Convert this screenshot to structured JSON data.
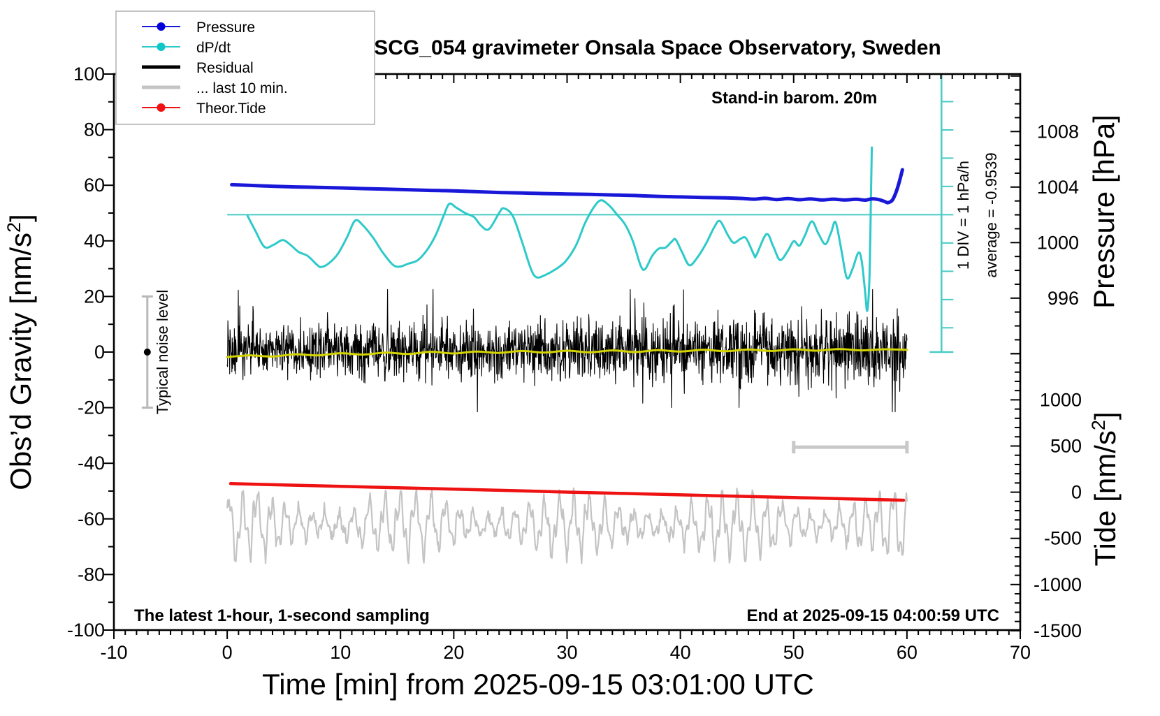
{
  "title": "SCG_054 gravimeter Onsala Space Observatory, Sweden",
  "colors": {
    "pressure": "#1a18d8",
    "pressure_dot": "#0202dc",
    "dpdt": "#2ec9c9",
    "dpdt_dot": "#10c6c6",
    "dpdt_guide": "#49cbc6",
    "residual": "#000000",
    "residual_smooth": "#d4d400",
    "last10": "#c4c4c4",
    "tide": "#ee1212",
    "tide_dot": "#ee1212",
    "noise_bar": "#b8b8b8",
    "scale_bar": "#c8c8c8",
    "frame": "#000000",
    "legend_border": "#b0b0b0"
  },
  "legend": {
    "items": [
      {
        "label": "Pressure",
        "color": "#1a18d8",
        "dot": "#0202dc",
        "style": "thin-dot"
      },
      {
        "label": "dP/dt",
        "color": "#2ec9c9",
        "dot": "#10c6c6",
        "style": "thin-dot"
      },
      {
        "label": "Residual",
        "color": "#000000",
        "dot": "",
        "style": "thick"
      },
      {
        "label": "... last 10 min.",
        "color": "#c4c4c4",
        "dot": "",
        "style": "thick"
      },
      {
        "label": "Theor.Tide",
        "color": "#ee1212",
        "dot": "#ee1212",
        "style": "thin-dot"
      }
    ]
  },
  "annotations": {
    "stand_in": "Stand-in barom. 20m",
    "div_scale": "1 DIV = 1 hPa/h",
    "average": "average = -0.9539",
    "noise_label": "Typical noise level",
    "sampling": "The latest 1-hour, 1-second sampling",
    "end_at": "End at 2025-09-15 04:00:59 UTC"
  },
  "axes": {
    "x": {
      "label": "Time [min] from 2025-09-15 03:01:00 UTC",
      "range": [
        -10,
        70
      ],
      "major_step": 10,
      "minor_step": 1,
      "tick_values": [
        -10,
        0,
        10,
        20,
        30,
        40,
        50,
        60,
        70
      ],
      "tick_labels": [
        "-10",
        "0",
        "10",
        "20",
        "30",
        "40",
        "50",
        "60",
        "70"
      ]
    },
    "gravity": {
      "label_main": "Obs’d Gravity [nm/s",
      "label_sup": "2",
      "label_close": "]",
      "range": [
        -100,
        100
      ],
      "major_step": 20,
      "minor_step": 10,
      "tick_values": [
        100,
        80,
        60,
        40,
        20,
        0,
        -20,
        -40,
        -60,
        -80,
        -100
      ],
      "tick_labels": [
        "100",
        "80",
        "60",
        "40",
        "20",
        "0",
        "-20",
        "-40",
        "-60",
        "-80",
        "-100"
      ]
    },
    "pressure": {
      "label": "Pressure [hPa]",
      "shown_range": [
        992,
        1012
      ],
      "major_step": 4,
      "minor_step": 1,
      "ref_value": 1000,
      "gravity_at_ref": 39.37,
      "gravity_per_unit": 4.994,
      "tick_values": [
        1008,
        1004,
        1000,
        996
      ],
      "tick_labels": [
        "1008",
        "1004",
        "1000",
        "996"
      ]
    },
    "tide": {
      "label_main": "Tide [nm/s",
      "label_sup": "2",
      "label_close": "]",
      "shown_range": [
        -1500,
        1500
      ],
      "major_step": 500,
      "minor_step": 100,
      "ref_value": 0,
      "gravity_at_ref": -50.4,
      "gravity_per_unit": 0.033218,
      "tick_values": [
        1000,
        500,
        0,
        -500,
        -1000,
        -1500
      ],
      "tick_labels": [
        "1000",
        "500",
        "0",
        "-500",
        "-1000",
        "-1500"
      ]
    }
  },
  "chart_data": {
    "type": "line",
    "title": "SCG_054 gravimeter Onsala Space Observatory, Sweden",
    "xlabel": "Time [min] from 2025-09-15 03:01:00 UTC",
    "ylabel_left": "Obs'd Gravity [nm/s2]",
    "ylabel_right_top": "Pressure [hPa]",
    "ylabel_right_bottom": "Tide [nm/s2]",
    "xlim": [
      -10,
      70
    ],
    "ylim_gravity": [
      -100,
      100
    ],
    "legend_position": "top-left",
    "grid": false,
    "series": [
      {
        "id": "pressure",
        "name": "Pressure",
        "axis": "pressure",
        "unit": "hPa",
        "width": 5,
        "smooth": true,
        "points": [
          [
            0.4,
            1004.17
          ],
          [
            2,
            1004.12
          ],
          [
            4,
            1004.06
          ],
          [
            6,
            1004.01
          ],
          [
            8,
            1003.98
          ],
          [
            10,
            1003.94
          ],
          [
            12,
            1003.89
          ],
          [
            14,
            1003.85
          ],
          [
            16,
            1003.81
          ],
          [
            18,
            1003.76
          ],
          [
            20,
            1003.73
          ],
          [
            22,
            1003.67
          ],
          [
            24,
            1003.61
          ],
          [
            26,
            1003.57
          ],
          [
            28,
            1003.53
          ],
          [
            30,
            1003.5
          ],
          [
            32,
            1003.47
          ],
          [
            34,
            1003.43
          ],
          [
            36,
            1003.39
          ],
          [
            38,
            1003.33
          ],
          [
            40,
            1003.29
          ],
          [
            42,
            1003.25
          ],
          [
            44,
            1003.22
          ],
          [
            45.5,
            1003.18
          ],
          [
            46.5,
            1003.13
          ],
          [
            47.5,
            1003.19
          ],
          [
            48.5,
            1003.1
          ],
          [
            49.5,
            1003.17
          ],
          [
            50.5,
            1003.09
          ],
          [
            51.5,
            1003.15
          ],
          [
            52.5,
            1003.07
          ],
          [
            53.5,
            1003.13
          ],
          [
            54.5,
            1003.07
          ],
          [
            55.5,
            1003.12
          ],
          [
            56.3,
            1003.06
          ],
          [
            56.9,
            1003.15
          ],
          [
            57.5,
            1003.1
          ],
          [
            58.0,
            1002.97
          ],
          [
            58.3,
            1002.88
          ],
          [
            58.7,
            1003.05
          ],
          [
            59.0,
            1003.55
          ],
          [
            59.3,
            1004.3
          ],
          [
            59.6,
            1005.25
          ]
        ]
      },
      {
        "id": "dpdt",
        "name": "dP/dt",
        "axis": "gravity",
        "unit": "gravity-scale",
        "scale_note": "zero line at gravity 49.4; 1 DIV = 1 hPa/h = 10.17 gravity units; average = -0.9539 hPa/h",
        "width": 3,
        "smooth": true,
        "points": [
          [
            1.8,
            49.0
          ],
          [
            2.5,
            43.5
          ],
          [
            3.3,
            37.8
          ],
          [
            4.1,
            38.6
          ],
          [
            4.9,
            40.3
          ],
          [
            5.6,
            38.5
          ],
          [
            6.3,
            36.0
          ],
          [
            7.1,
            34.6
          ],
          [
            7.9,
            31.5
          ],
          [
            8.3,
            30.6
          ],
          [
            9.0,
            32.0
          ],
          [
            9.8,
            35.5
          ],
          [
            10.6,
            41.5
          ],
          [
            11.3,
            47.3
          ],
          [
            12.0,
            45.5
          ],
          [
            12.9,
            41.0
          ],
          [
            13.7,
            36.0
          ],
          [
            14.6,
            31.5
          ],
          [
            15.2,
            30.7
          ],
          [
            16.0,
            31.8
          ],
          [
            16.8,
            33.0
          ],
          [
            17.6,
            36.5
          ],
          [
            18.4,
            42.0
          ],
          [
            19.1,
            49.0
          ],
          [
            19.6,
            53.3
          ],
          [
            20.2,
            52.0
          ],
          [
            21.0,
            50.0
          ],
          [
            21.8,
            48.5
          ],
          [
            22.4,
            45.5
          ],
          [
            23.1,
            44.2
          ],
          [
            24.0,
            50.0
          ],
          [
            24.4,
            51.7
          ],
          [
            25.2,
            49.0
          ],
          [
            26.0,
            40.0
          ],
          [
            26.8,
            30.0
          ],
          [
            27.3,
            26.9
          ],
          [
            28.0,
            27.6
          ],
          [
            29.0,
            29.8
          ],
          [
            29.9,
            32.8
          ],
          [
            30.8,
            38.5
          ],
          [
            31.6,
            46.5
          ],
          [
            32.4,
            52.3
          ],
          [
            33.0,
            54.6
          ],
          [
            33.7,
            52.8
          ],
          [
            34.4,
            49.5
          ],
          [
            35.1,
            46.0
          ],
          [
            35.8,
            40.0
          ],
          [
            36.5,
            31.0
          ],
          [
            36.9,
            29.9
          ],
          [
            37.5,
            34.5
          ],
          [
            38.1,
            37.2
          ],
          [
            38.7,
            37.6
          ],
          [
            39.3,
            40.0
          ],
          [
            39.6,
            40.4
          ],
          [
            40.2,
            35.5
          ],
          [
            40.8,
            31.2
          ],
          [
            41.5,
            34.0
          ],
          [
            42.3,
            39.3
          ],
          [
            43.0,
            45.0
          ],
          [
            43.5,
            47.1
          ],
          [
            44.2,
            42.0
          ],
          [
            44.7,
            39.3
          ],
          [
            45.3,
            40.7
          ],
          [
            45.8,
            40.9
          ],
          [
            46.5,
            35.0
          ],
          [
            46.7,
            34.8
          ],
          [
            47.6,
            42.4
          ],
          [
            48.2,
            38.0
          ],
          [
            48.8,
            33.1
          ],
          [
            49.5,
            36.5
          ],
          [
            50.0,
            39.9
          ],
          [
            50.5,
            38.3
          ],
          [
            51.0,
            42.0
          ],
          [
            51.6,
            47.0
          ],
          [
            52.2,
            42.5
          ],
          [
            52.8,
            38.8
          ],
          [
            53.3,
            43.0
          ],
          [
            53.7,
            46.7
          ],
          [
            54.2,
            37.0
          ],
          [
            54.7,
            26.7
          ],
          [
            55.2,
            30.0
          ],
          [
            55.7,
            35.7
          ],
          [
            56.0,
            33.0
          ],
          [
            56.3,
            22.0
          ],
          [
            56.5,
            14.9
          ],
          [
            56.7,
            28.0
          ],
          [
            56.82,
            55.0
          ],
          [
            56.9,
            73.6
          ]
        ]
      },
      {
        "id": "residual",
        "name": "Residual",
        "axis": "gravity",
        "unit": "nm/s2",
        "width": 1.1,
        "type": "noise",
        "gen": {
          "x0": 0,
          "x1": 60,
          "n": 1900,
          "seed": 42,
          "center": 0.5,
          "sigma": 4.4,
          "growth": 0.35,
          "spike_prob": 0.05,
          "spike_scale": 2.6,
          "clamp": 22
        }
      },
      {
        "id": "residual_smooth",
        "name": "Residual smoothed",
        "axis": "gravity",
        "unit": "nm/s2",
        "width": 3,
        "smooth": true,
        "points": [
          [
            0,
            -1.8
          ],
          [
            2,
            -1.2
          ],
          [
            4,
            -1.6
          ],
          [
            6,
            -0.8
          ],
          [
            8,
            -1.2
          ],
          [
            10,
            -0.4
          ],
          [
            12,
            -0.9
          ],
          [
            14,
            -0.2
          ],
          [
            16,
            -0.7
          ],
          [
            18,
            0.1
          ],
          [
            20,
            -0.5
          ],
          [
            22,
            0.2
          ],
          [
            24,
            -0.3
          ],
          [
            26,
            0.4
          ],
          [
            28,
            -0.2
          ],
          [
            30,
            0.5
          ],
          [
            32,
            -0.1
          ],
          [
            34,
            0.6
          ],
          [
            36,
            0.0
          ],
          [
            38,
            0.7
          ],
          [
            40,
            0.2
          ],
          [
            42,
            0.8
          ],
          [
            44,
            0.3
          ],
          [
            46,
            0.9
          ],
          [
            48,
            0.4
          ],
          [
            50,
            1.0
          ],
          [
            52,
            0.5
          ],
          [
            54,
            1.1
          ],
          [
            56,
            0.6
          ],
          [
            58,
            1.0
          ],
          [
            60,
            0.8
          ]
        ]
      },
      {
        "id": "last10",
        "name": "... last 10 min.",
        "axis": "gravity",
        "unit": "nm/s2",
        "width": 2.2,
        "type": "wave",
        "gen": {
          "x0": 0,
          "x1": 60,
          "n": 1100,
          "seed": 7,
          "center": -62,
          "a1": 6.5,
          "p1": 1.28,
          "a2": 2.8,
          "p2": 0.45,
          "mod_period": 14.5,
          "mod_depth": 0.45,
          "jitter": 1.2,
          "clamp_lo": -76,
          "clamp_hi": -46
        }
      },
      {
        "id": "tide",
        "name": "Theor.Tide",
        "axis": "tide",
        "unit": "nm/s2",
        "width": 4.5,
        "smooth": true,
        "points": [
          [
            0.3,
            93
          ],
          [
            5,
            78
          ],
          [
            10,
            63
          ],
          [
            15,
            48
          ],
          [
            20,
            33
          ],
          [
            25,
            17
          ],
          [
            30,
            1
          ],
          [
            35,
            -14
          ],
          [
            40,
            -29
          ],
          [
            45,
            -44
          ],
          [
            50,
            -58
          ],
          [
            55,
            -73
          ],
          [
            59.7,
            -87
          ]
        ]
      }
    ],
    "extras": {
      "zero_line": {
        "gravity": 49.4,
        "from_min": 0,
        "to_min": 63.05
      },
      "ruler": {
        "x_min": 63.05,
        "top_gravity": 100,
        "bottom_gravity": 0.0,
        "anchor_gravity": 49.4,
        "div_gravity": 10.17,
        "tick_len": 17,
        "cap_halfwidth": 17
      },
      "scale_bar": {
        "from_min": 50,
        "to_min": 60,
        "gravity": -34.2,
        "cap_halfheight": 9
      },
      "noise_bar": {
        "x_min": -7.05,
        "center_gravity": 0,
        "half_span_gravity": 20,
        "cap_halfwidth": 8,
        "dot_radius": 5
      }
    }
  }
}
